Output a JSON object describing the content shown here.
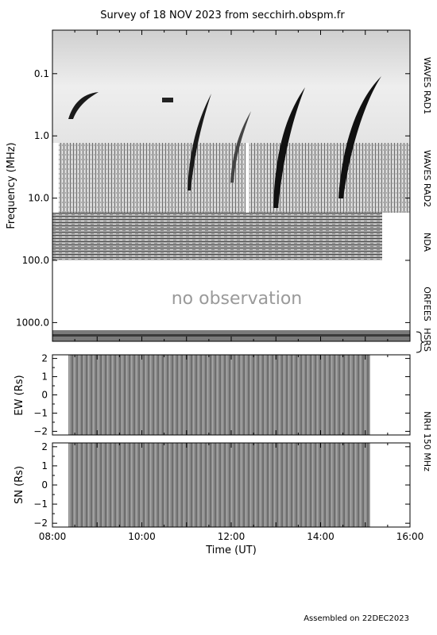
{
  "title": "Survey of 18 NOV 2023 from secchirh.obspm.fr",
  "footer": "Assembled on 22DEC2023",
  "no_observation": "no observation",
  "instruments": {
    "rad1": "WAVES RAD1",
    "rad2": "WAVES RAD2",
    "nda": "NDA",
    "orfees": "ORFEES",
    "hsrs": "HSRS",
    "nrh": "NRH 150 MHz"
  },
  "chart_data": [
    {
      "type": "heatmap",
      "name": "dynamic-spectrum",
      "ylabel": "Frequency (MHz)",
      "y_scale": "log",
      "y_direction": "reversed",
      "y_ticks": [
        "0.1",
        "1.0",
        "10.0",
        "100.0",
        "1000.0"
      ],
      "ylim": [
        0.02,
        2000
      ],
      "xlim": [
        "08:00",
        "16:00"
      ],
      "colormap": "grayscale (dark = intense)",
      "bursts_visible": [
        "~08:30 (RAD1)",
        "~11:00",
        "~11:30",
        "~13:00",
        "~14:40"
      ]
    },
    {
      "type": "heatmap",
      "name": "nrh-ew",
      "ylabel": "EW (Rs)",
      "y_ticks": [
        "2",
        "1",
        "0",
        "-1",
        "-2"
      ],
      "ylim": [
        -2.2,
        2.2
      ],
      "data_extent": [
        "08:25",
        "15:05"
      ]
    },
    {
      "type": "heatmap",
      "name": "nrh-sn",
      "ylabel": "SN (Rs)",
      "y_ticks": [
        "2",
        "1",
        "0",
        "-1",
        "-2"
      ],
      "ylim": [
        -2.2,
        2.2
      ],
      "data_extent": [
        "08:25",
        "15:05"
      ],
      "xlabel": "Time (UT)",
      "x_ticks": [
        "08:00",
        "10:00",
        "12:00",
        "14:00",
        "16:00"
      ]
    }
  ],
  "colors": {
    "frame": "#000000",
    "noobs": "#9a9a9a",
    "background": "#ffffff"
  }
}
